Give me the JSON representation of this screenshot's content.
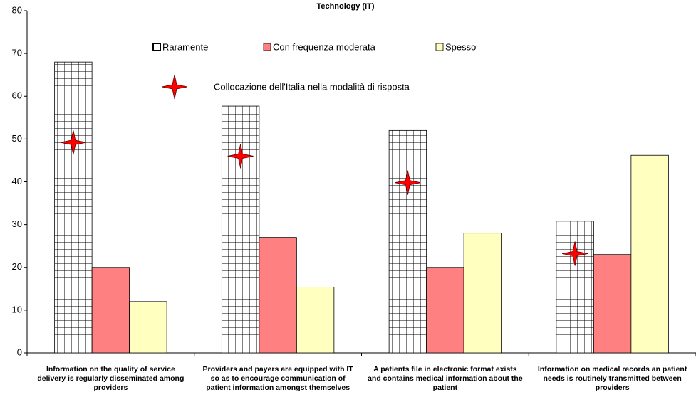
{
  "chart_data": {
    "type": "bar",
    "title": "Technology (IT)",
    "categories": [
      "Information on the quality of service delivery is regularly disseminated among providers",
      "Providers and payers are equipped with IT so as to encourage communication of patient information amongst themselves",
      "A patients file in electronic format exists and contains medical information about the patient",
      "Information on medical records an patient needs is routinely transmitted between providers"
    ],
    "series": [
      {
        "name": "Raramente",
        "color": "#ffffff",
        "pattern": "grid",
        "values": [
          68,
          57.7,
          52,
          30.8
        ]
      },
      {
        "name": "Con frequenza moderata",
        "color": "#ff8080",
        "values": [
          20,
          27,
          20,
          23
        ]
      },
      {
        "name": "Spesso",
        "color": "#ffffc0",
        "values": [
          12,
          15.4,
          28,
          46.2
        ]
      },
      {
        "name": "Collocazione dell'Italia nella modalità di risposta",
        "color": "#ff0000",
        "marker": "star",
        "values": [
          49.2,
          46,
          39.8,
          23.2
        ]
      }
    ],
    "ylim": [
      0,
      80
    ],
    "yticks": [
      0,
      10,
      20,
      30,
      40,
      50,
      60,
      70,
      80
    ],
    "grid": false
  }
}
